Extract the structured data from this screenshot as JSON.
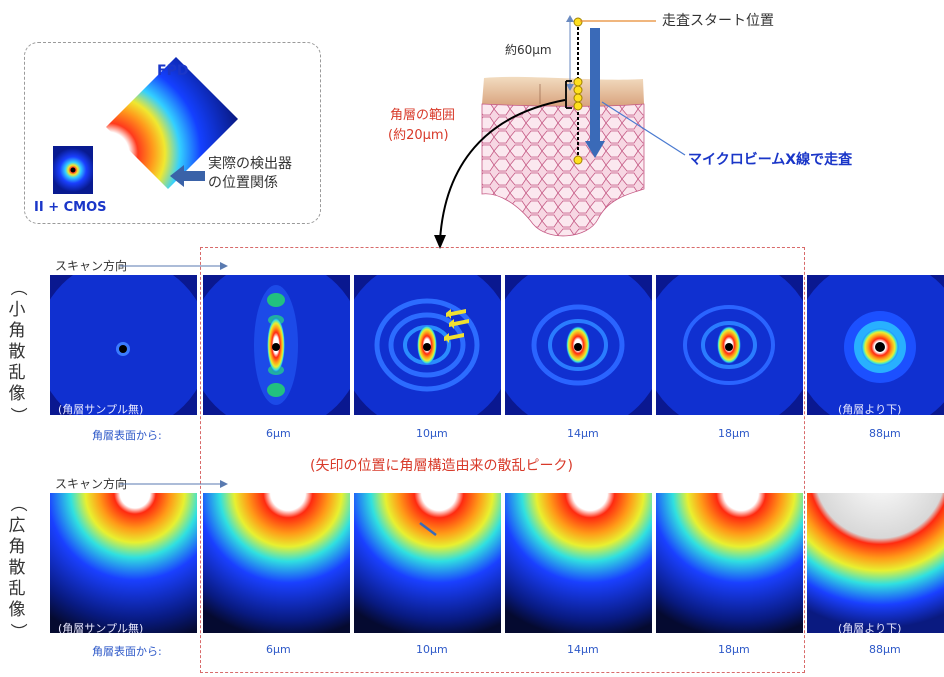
{
  "detector": {
    "fpd_label": "FPD",
    "cmos_label": "II + CMOS",
    "relation_line1": "実際の検出器",
    "relation_line2": "の位置関係"
  },
  "skin": {
    "scan_start": "走査スタート位置",
    "depth": "約60μm",
    "stratum_range_line1": "角層の範囲",
    "stratum_range_line2": "(約20μm)",
    "microbeam": "マイクロビームX線で走査"
  },
  "rows": {
    "saxs_label": "（小角散乱像）",
    "waxs_label": "（広角散乱像）",
    "scan_direction": "スキャン方向",
    "from_surface": "角層表面から:",
    "no_sample": "(角層サンプル無)",
    "below_stratum": "(角層より下)",
    "depths": [
      "6μm",
      "10μm",
      "14μm",
      "18μm",
      "88μm"
    ]
  },
  "annotation": "(矢印の位置に角層構造由来の散乱ピーク)",
  "colors": {
    "panel_bg": "#0a1890",
    "accent_blue": "#1a36c8",
    "accent_red": "#d83a2a",
    "dashed_frame": "#d86a6a"
  }
}
